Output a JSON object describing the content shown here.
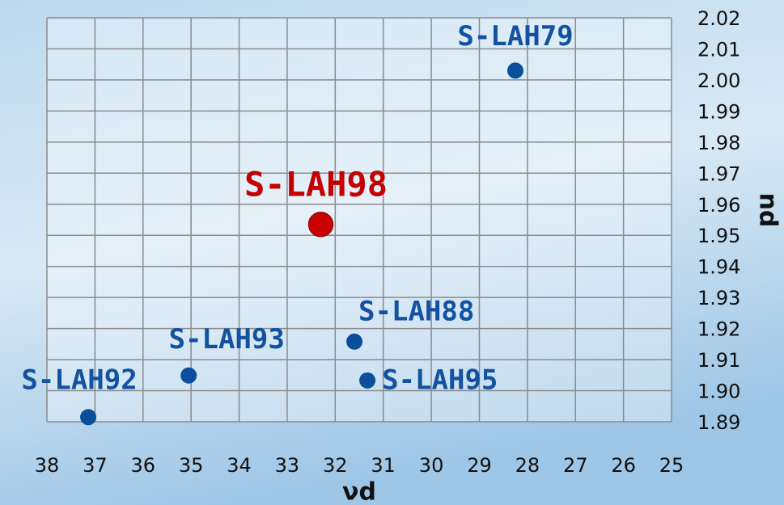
{
  "chart_data": {
    "type": "scatter",
    "xlabel": "νd",
    "ylabel": "nd",
    "xlim": [
      38,
      25
    ],
    "xticks": [
      38,
      37,
      36,
      35,
      34,
      33,
      32,
      31,
      30,
      29,
      28,
      27,
      26,
      25
    ],
    "ylim": [
      1.89,
      2.02
    ],
    "yticks": [
      1.89,
      {
        "value": 1.9,
        "label": "1.90"
      },
      1.91,
      1.92,
      1.93,
      1.94,
      1.95,
      1.96,
      1.97,
      1.98,
      1.99,
      {
        "value": 2.0,
        "label": "2.00"
      },
      2.01,
      2.02
    ],
    "grid": true,
    "series": [
      {
        "name": "S-LAH79",
        "color": "#0b4f9c",
        "x": [
          28.25
        ],
        "values": [
          2.003
        ]
      },
      {
        "name": "S-LAH98",
        "color": "#cc0000",
        "x": [
          32.3
        ],
        "values": [
          1.9535
        ]
      },
      {
        "name": "S-LAH88",
        "color": "#0b4f9c",
        "x": [
          31.6
        ],
        "values": [
          1.9158
        ]
      },
      {
        "name": "S-LAH93",
        "color": "#0b4f9c",
        "x": [
          35.05
        ],
        "values": [
          1.9049
        ]
      },
      {
        "name": "S-LAH95",
        "color": "#0b4f9c",
        "x": [
          31.33
        ],
        "values": [
          1.9033
        ]
      },
      {
        "name": "S-LAH92",
        "color": "#0b4f9c",
        "x": [
          37.14
        ],
        "values": [
          1.8915
        ]
      }
    ]
  }
}
